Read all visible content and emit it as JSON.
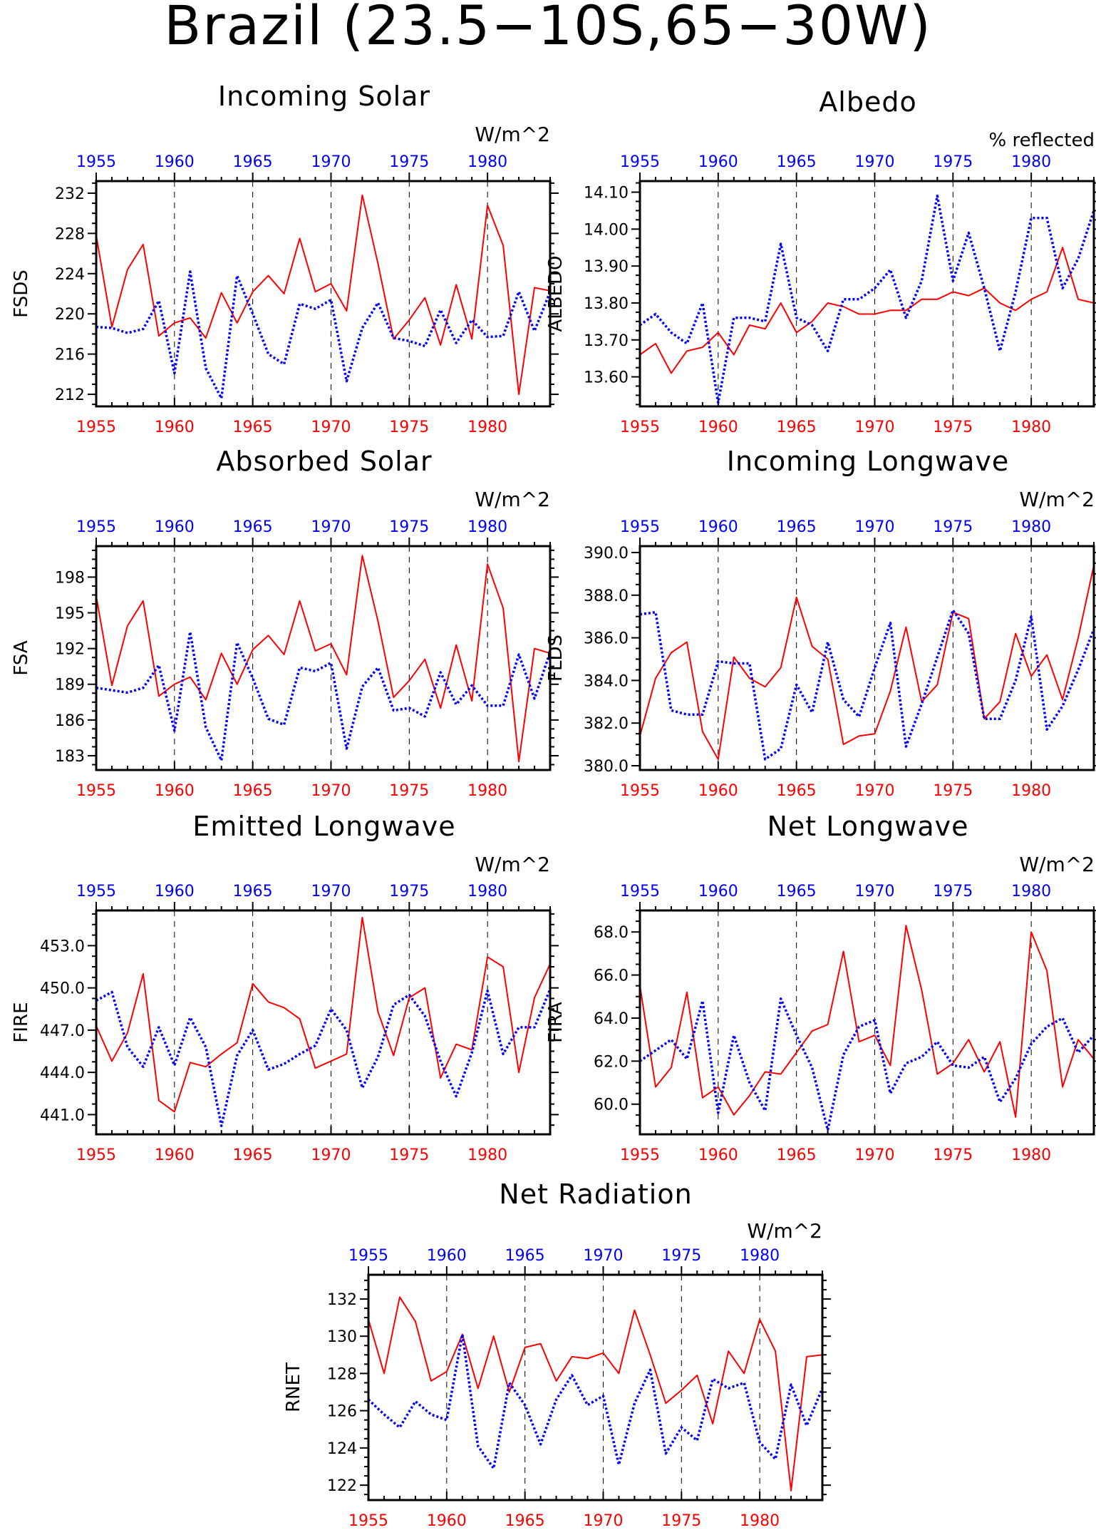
{
  "figure_title": "Brazil (23.5−10S,65−30W)",
  "colors": {
    "red_series": "#ff0000",
    "blue_series": "#0000ff",
    "frame": "#000000"
  },
  "chart_data": [
    {
      "type": "line",
      "title": "Incoming Solar",
      "ylabel": "FSDS",
      "units": "W/m^2",
      "x_start": 1955,
      "x_end": 1984,
      "ylim": [
        210.8,
        233.2
      ],
      "yticks": [
        212,
        216,
        220,
        224,
        228,
        232
      ],
      "ytick_labels": [
        "212",
        "216",
        "220",
        "224",
        "228",
        "232"
      ],
      "xticks": [
        1955,
        1960,
        1965,
        1970,
        1975,
        1980
      ],
      "xtick_labels": [
        "1955",
        "1960",
        "1965",
        "1970",
        "1975",
        "1980"
      ],
      "series": [
        {
          "color": "red",
          "style": "solid",
          "values": [
            227.8,
            218.7,
            224.4,
            226.9,
            217.8,
            219.1,
            219.6,
            217.6,
            222.1,
            219.1,
            222.2,
            223.8,
            222.0,
            227.5,
            222.2,
            223.0,
            220.3,
            231.8,
            225.0,
            217.5,
            219.4,
            221.6,
            216.9,
            222.9,
            217.5,
            230.8,
            226.8,
            212.0,
            222.6,
            222.3
          ]
        },
        {
          "color": "blue",
          "style": "dotted",
          "values": [
            218.7,
            218.6,
            218.1,
            218.5,
            221.3,
            214.1,
            224.2,
            214.6,
            211.6,
            223.8,
            220.0,
            216.0,
            215.0,
            221.0,
            220.5,
            221.4,
            213.3,
            218.6,
            221.1,
            217.6,
            217.3,
            216.8,
            220.4,
            217.1,
            219.4,
            217.7,
            217.8,
            222.2,
            218.3,
            222.2
          ]
        }
      ]
    },
    {
      "type": "line",
      "title": "Albedo",
      "ylabel": "ALBEDO",
      "units": "% reflected",
      "x_start": 1955,
      "x_end": 1984,
      "ylim": [
        13.52,
        14.13
      ],
      "yticks": [
        13.6,
        13.7,
        13.8,
        13.9,
        14.0,
        14.1
      ],
      "ytick_labels": [
        "13.60",
        "13.70",
        "13.80",
        "13.90",
        "14.00",
        "14.10"
      ],
      "xticks": [
        1955,
        1960,
        1965,
        1970,
        1975,
        1980
      ],
      "xtick_labels": [
        "1955",
        "1960",
        "1965",
        "1970",
        "1975",
        "1980"
      ],
      "series": [
        {
          "color": "red",
          "style": "solid",
          "values": [
            13.66,
            13.69,
            13.61,
            13.67,
            13.68,
            13.72,
            13.66,
            13.74,
            13.73,
            13.8,
            13.72,
            13.75,
            13.8,
            13.79,
            13.77,
            13.77,
            13.78,
            13.78,
            13.81,
            13.81,
            13.83,
            13.82,
            13.84,
            13.8,
            13.78,
            13.81,
            13.83,
            13.95,
            13.81,
            13.8
          ]
        },
        {
          "color": "blue",
          "style": "dotted",
          "values": [
            13.74,
            13.77,
            13.72,
            13.69,
            13.8,
            13.53,
            13.76,
            13.76,
            13.75,
            13.96,
            13.76,
            13.74,
            13.67,
            13.81,
            13.81,
            13.84,
            13.89,
            13.76,
            13.86,
            14.09,
            13.86,
            13.99,
            13.84,
            13.67,
            13.83,
            14.03,
            14.03,
            13.84,
            13.92,
            14.05
          ]
        }
      ]
    },
    {
      "type": "line",
      "title": "Absorbed Solar",
      "ylabel": "FSA",
      "units": "W/m^2",
      "x_start": 1955,
      "x_end": 1984,
      "ylim": [
        181.8,
        200.6
      ],
      "yticks": [
        183,
        186,
        189,
        192,
        195,
        198
      ],
      "ytick_labels": [
        "183",
        "186",
        "189",
        "192",
        "195",
        "198"
      ],
      "xticks": [
        1955,
        1960,
        1965,
        1970,
        1975,
        1980
      ],
      "xtick_labels": [
        "1955",
        "1960",
        "1965",
        "1970",
        "1975",
        "1980"
      ],
      "series": [
        {
          "color": "red",
          "style": "solid",
          "values": [
            196.4,
            188.9,
            193.9,
            196.0,
            188.0,
            189.0,
            189.6,
            187.7,
            191.6,
            189.0,
            191.9,
            193.1,
            191.5,
            196.0,
            191.8,
            192.4,
            189.8,
            199.8,
            194.3,
            187.9,
            189.3,
            191.1,
            187.0,
            192.3,
            187.6,
            199.1,
            195.4,
            182.5,
            192.0,
            191.6
          ]
        },
        {
          "color": "blue",
          "style": "dotted",
          "values": [
            188.7,
            188.5,
            188.3,
            188.7,
            190.6,
            185.1,
            193.4,
            185.4,
            182.6,
            192.5,
            189.5,
            186.1,
            185.6,
            190.4,
            190.1,
            190.8,
            183.6,
            188.8,
            190.4,
            186.8,
            187.0,
            186.3,
            190.0,
            187.3,
            188.9,
            187.2,
            187.2,
            191.5,
            187.8,
            191.7
          ]
        }
      ]
    },
    {
      "type": "line",
      "title": "Incoming Longwave",
      "ylabel": "FLDS",
      "units": "W/m^2",
      "x_start": 1955,
      "x_end": 1984,
      "ylim": [
        379.8,
        390.3
      ],
      "yticks": [
        380,
        382,
        384,
        386,
        388,
        390
      ],
      "ytick_labels": [
        "380.0",
        "382.0",
        "384.0",
        "386.0",
        "388.0",
        "390.0"
      ],
      "xticks": [
        1955,
        1960,
        1965,
        1970,
        1975,
        1980
      ],
      "xtick_labels": [
        "1955",
        "1960",
        "1965",
        "1970",
        "1975",
        "1980"
      ],
      "series": [
        {
          "color": "red",
          "style": "solid",
          "values": [
            381.4,
            384.1,
            385.3,
            385.8,
            381.6,
            380.3,
            385.1,
            384.1,
            383.7,
            384.6,
            387.9,
            385.6,
            385.0,
            381.0,
            381.4,
            381.5,
            383.5,
            386.5,
            383.0,
            383.8,
            387.2,
            386.9,
            382.2,
            383.0,
            386.2,
            384.2,
            385.2,
            383.1,
            386.0,
            389.4
          ]
        },
        {
          "color": "blue",
          "style": "dotted",
          "values": [
            387.1,
            387.2,
            382.6,
            382.4,
            382.4,
            384.9,
            384.8,
            384.8,
            380.3,
            380.8,
            383.8,
            382.5,
            385.8,
            383.1,
            382.3,
            384.6,
            386.7,
            380.9,
            382.9,
            385.1,
            387.3,
            386.2,
            382.2,
            382.2,
            384.0,
            387.0,
            381.7,
            382.8,
            384.5,
            386.4
          ]
        }
      ]
    },
    {
      "type": "line",
      "title": "Emitted Longwave",
      "ylabel": "FIRE",
      "units": "W/m^2",
      "x_start": 1955,
      "x_end": 1984,
      "ylim": [
        439.6,
        455.5
      ],
      "yticks": [
        441,
        444,
        447,
        450,
        453
      ],
      "ytick_labels": [
        "441.0",
        "444.0",
        "447.0",
        "450.0",
        "453.0"
      ],
      "xticks": [
        1955,
        1960,
        1965,
        1970,
        1975,
        1980
      ],
      "xtick_labels": [
        "1955",
        "1960",
        "1965",
        "1970",
        "1975",
        "1980"
      ],
      "series": [
        {
          "color": "red",
          "style": "solid",
          "values": [
            447.3,
            444.8,
            446.8,
            451.0,
            442.0,
            441.2,
            444.7,
            444.4,
            445.3,
            446.1,
            450.3,
            449.0,
            448.6,
            447.8,
            444.3,
            444.8,
            445.3,
            455.0,
            448.3,
            445.2,
            449.3,
            450.0,
            443.6,
            446.0,
            445.6,
            452.2,
            451.5,
            444.0,
            449.3,
            451.7
          ]
        },
        {
          "color": "blue",
          "style": "dotted",
          "values": [
            449.1,
            449.7,
            445.8,
            444.4,
            447.2,
            444.5,
            447.9,
            445.8,
            440.2,
            445.2,
            447.0,
            444.2,
            444.6,
            445.3,
            445.9,
            448.5,
            447.0,
            442.9,
            445.1,
            448.8,
            449.5,
            448.0,
            444.8,
            442.3,
            445.4,
            449.8,
            445.3,
            447.2,
            447.2,
            449.9
          ]
        }
      ]
    },
    {
      "type": "line",
      "title": "Net Longwave",
      "ylabel": "FIRA",
      "units": "W/m^2",
      "x_start": 1955,
      "x_end": 1984,
      "ylim": [
        58.6,
        69.0
      ],
      "yticks": [
        60,
        62,
        64,
        66,
        68
      ],
      "ytick_labels": [
        "60.0",
        "62.0",
        "64.0",
        "66.0",
        "68.0"
      ],
      "xticks": [
        1955,
        1960,
        1965,
        1970,
        1975,
        1980
      ],
      "xtick_labels": [
        "1955",
        "1960",
        "1965",
        "1970",
        "1975",
        "1980"
      ],
      "series": [
        {
          "color": "red",
          "style": "solid",
          "values": [
            65.5,
            60.8,
            61.7,
            65.2,
            60.3,
            60.8,
            59.5,
            60.4,
            61.5,
            61.4,
            62.4,
            63.4,
            63.7,
            67.1,
            62.9,
            63.2,
            61.8,
            68.3,
            65.3,
            61.4,
            61.9,
            63.0,
            61.5,
            62.9,
            59.4,
            68.0,
            66.2,
            60.8,
            63.0,
            62.1
          ]
        },
        {
          "color": "blue",
          "style": "dotted",
          "values": [
            62.0,
            62.5,
            63.0,
            62.1,
            64.8,
            59.6,
            63.2,
            61.0,
            59.7,
            64.9,
            63.2,
            61.7,
            58.8,
            62.3,
            63.6,
            63.9,
            60.5,
            61.9,
            62.2,
            62.9,
            61.8,
            61.7,
            62.2,
            60.1,
            61.2,
            62.8,
            63.6,
            64.0,
            62.4,
            63.2
          ]
        }
      ]
    },
    {
      "type": "line",
      "title": "Net Radiation",
      "ylabel": "RNET",
      "units": "W/m^2",
      "x_start": 1955,
      "x_end": 1984,
      "ylim": [
        121.2,
        133.3
      ],
      "yticks": [
        122,
        124,
        126,
        128,
        130,
        132
      ],
      "ytick_labels": [
        "122",
        "124",
        "126",
        "128",
        "130",
        "132"
      ],
      "xticks": [
        1955,
        1960,
        1965,
        1970,
        1975,
        1980
      ],
      "xtick_labels": [
        "1955",
        "1960",
        "1965",
        "1970",
        "1975",
        "1980"
      ],
      "series": [
        {
          "color": "red",
          "style": "solid",
          "values": [
            130.9,
            128.0,
            132.1,
            130.8,
            127.6,
            128.1,
            130.1,
            127.2,
            130.0,
            127.0,
            129.4,
            129.6,
            127.6,
            128.9,
            128.8,
            129.1,
            128.0,
            131.4,
            129.0,
            126.4,
            127.1,
            127.9,
            125.3,
            129.2,
            128.0,
            130.9,
            129.2,
            121.7,
            128.9,
            129.0
          ]
        },
        {
          "color": "blue",
          "style": "dotted",
          "values": [
            126.6,
            125.8,
            125.1,
            126.5,
            125.8,
            125.5,
            130.1,
            124.1,
            122.9,
            127.5,
            126.3,
            124.2,
            126.6,
            127.9,
            126.3,
            126.8,
            123.1,
            126.4,
            128.2,
            123.7,
            125.1,
            124.4,
            127.7,
            127.2,
            127.5,
            124.3,
            123.4,
            127.4,
            125.2,
            127.2
          ]
        }
      ]
    }
  ]
}
